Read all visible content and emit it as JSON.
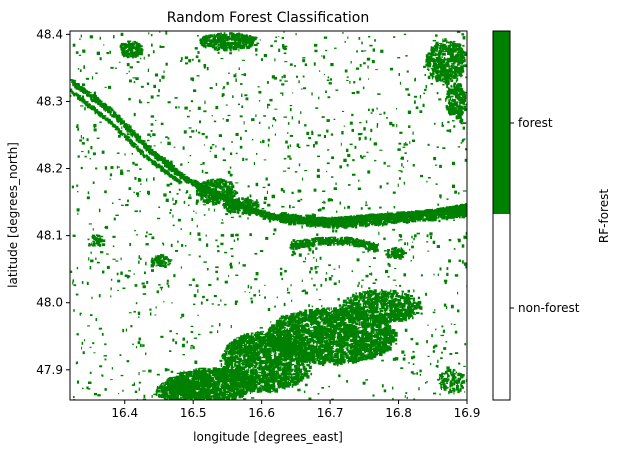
{
  "chart_data": {
    "type": "heatmap",
    "title": "Random Forest Classification",
    "xlabel": "longitude [degrees_east]",
    "ylabel": "latitude [degrees_north]",
    "xlim": [
      16.32,
      16.9
    ],
    "ylim": [
      47.855,
      48.405
    ],
    "x_ticks": [
      {
        "value": 16.4,
        "label": "16.4"
      },
      {
        "value": 16.5,
        "label": "16.5"
      },
      {
        "value": 16.6,
        "label": "16.6"
      },
      {
        "value": 16.7,
        "label": "16.7"
      },
      {
        "value": 16.8,
        "label": "16.8"
      },
      {
        "value": 16.9,
        "label": "16.9"
      }
    ],
    "y_ticks": [
      {
        "value": 47.9,
        "label": "47.9"
      },
      {
        "value": 48.0,
        "label": "48.0"
      },
      {
        "value": 48.1,
        "label": "48.1"
      },
      {
        "value": 48.2,
        "label": "48.2"
      },
      {
        "value": 48.3,
        "label": "48.3"
      },
      {
        "value": 48.4,
        "label": "48.4"
      }
    ],
    "colorbar": {
      "label": "RF-forest",
      "classes": [
        {
          "label": "non-forest",
          "color": "#ffffff"
        },
        {
          "label": "forest",
          "color": "#008000"
        }
      ]
    },
    "grid": false
  }
}
